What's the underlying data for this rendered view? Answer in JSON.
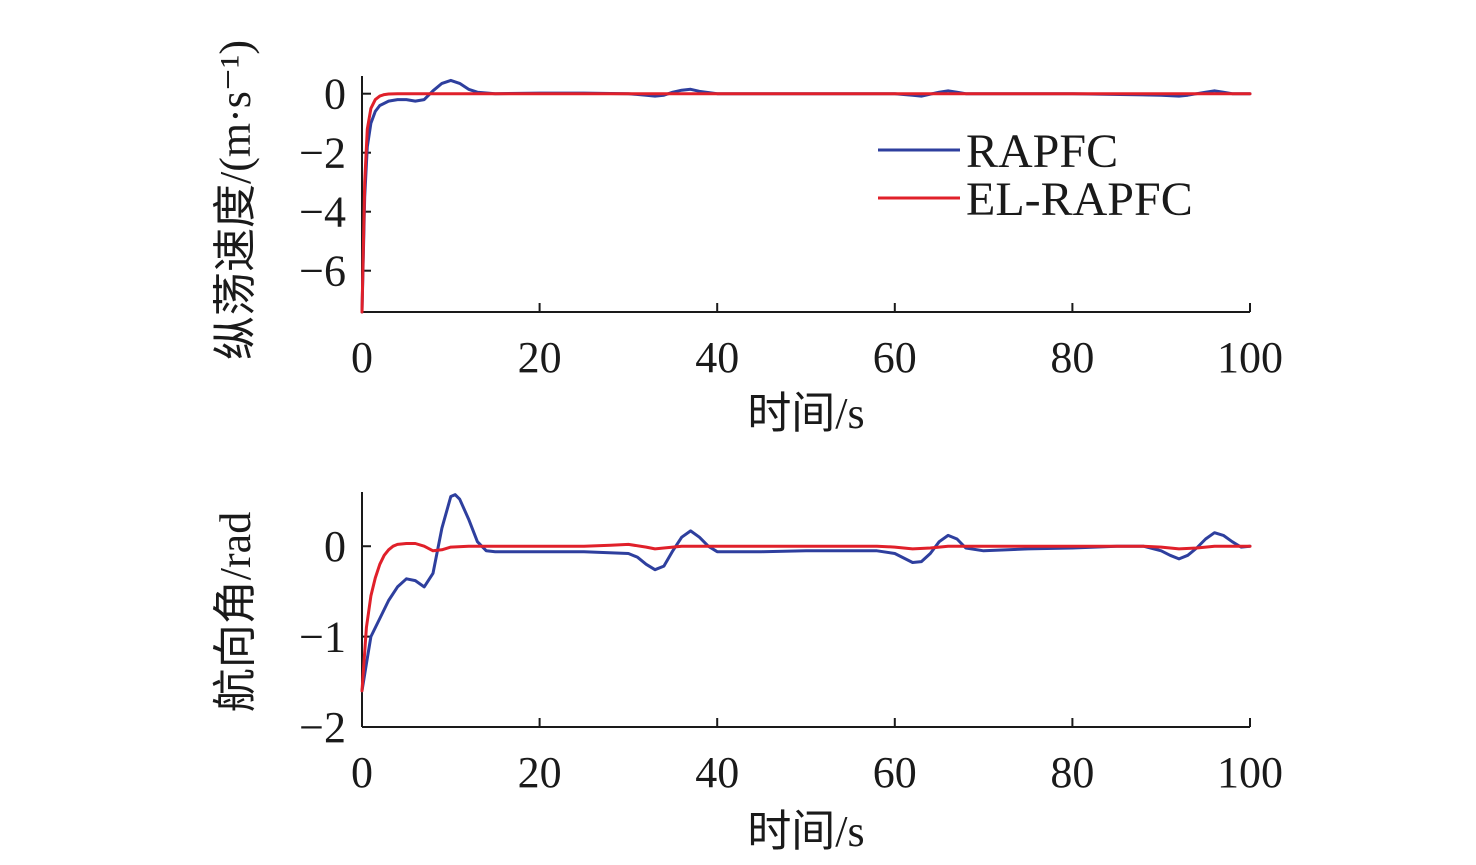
{
  "colors": {
    "rapfc": "#2e3f9e",
    "el_rapfc": "#e0202a",
    "axis": "#1a1a1a"
  },
  "chart_data": [
    {
      "type": "line",
      "xlabel": "时间/s",
      "ylabel": "纵荡速度/(m·s⁻¹)",
      "xlim": [
        0,
        100
      ],
      "ylim": [
        -7.4,
        0.6
      ],
      "xticks": [
        0,
        20,
        40,
        60,
        80,
        100
      ],
      "xtick_labels": [
        "0",
        "20",
        "40",
        "60",
        "80",
        "100"
      ],
      "yticks": [
        0,
        -2,
        -4,
        -6
      ],
      "ytick_labels": [
        "0",
        "−2",
        "−4",
        "−6"
      ],
      "grid": false,
      "legend": {
        "position": "upper-right"
      },
      "series": [
        {
          "name": "RAPFC",
          "color": "#2e3f9e",
          "x": [
            0,
            0.3,
            0.6,
            1,
            1.5,
            2,
            3,
            4,
            5,
            6,
            7,
            8,
            9,
            10,
            11,
            12,
            13,
            15,
            20,
            25,
            30,
            32,
            33,
            34,
            35,
            36,
            37,
            38,
            40,
            50,
            60,
            62,
            63,
            65,
            66,
            67,
            68,
            70,
            80,
            90,
            92,
            93,
            95,
            96,
            97,
            98,
            100
          ],
          "y": [
            -7.4,
            -3.5,
            -1.8,
            -1.0,
            -0.6,
            -0.4,
            -0.25,
            -0.2,
            -0.2,
            -0.25,
            -0.2,
            0.1,
            0.35,
            0.45,
            0.35,
            0.15,
            0.05,
            0.0,
            0.02,
            0.02,
            0.0,
            -0.05,
            -0.08,
            -0.05,
            0.05,
            0.12,
            0.15,
            0.08,
            0.0,
            0.0,
            0.0,
            -0.05,
            -0.08,
            0.05,
            0.1,
            0.05,
            0.0,
            0.0,
            0.0,
            -0.05,
            -0.08,
            -0.05,
            0.05,
            0.1,
            0.05,
            0.0,
            0.0
          ]
        },
        {
          "name": "EL-RAPFC",
          "color": "#e0202a",
          "x": [
            0,
            0.3,
            0.6,
            1,
            1.5,
            2,
            2.5,
            3,
            4,
            5,
            10,
            20,
            40,
            60,
            80,
            100
          ],
          "y": [
            -7.4,
            -3.0,
            -1.2,
            -0.5,
            -0.2,
            -0.08,
            -0.03,
            -0.01,
            0.0,
            0.0,
            0.0,
            0.0,
            0.0,
            0.0,
            0.0,
            0.0
          ]
        }
      ]
    },
    {
      "type": "line",
      "xlabel": "时间/s",
      "ylabel": "航向角/rad",
      "xlim": [
        0,
        100
      ],
      "ylim": [
        -2,
        0.6
      ],
      "xticks": [
        0,
        20,
        40,
        60,
        80,
        100
      ],
      "xtick_labels": [
        "0",
        "20",
        "40",
        "60",
        "80",
        "100"
      ],
      "yticks": [
        0,
        -1,
        -2
      ],
      "ytick_labels": [
        "0",
        "−1",
        "−2"
      ],
      "grid": false,
      "series": [
        {
          "name": "RAPFC",
          "color": "#2e3f9e",
          "x": [
            0,
            0.5,
            1,
            2,
            3,
            4,
            5,
            6,
            7,
            8,
            9,
            10,
            10.5,
            11,
            12,
            13,
            14,
            15,
            20,
            25,
            30,
            31,
            32,
            33,
            34,
            35,
            36,
            37,
            38,
            39,
            40,
            45,
            50,
            55,
            58,
            60,
            61,
            62,
            63,
            64,
            65,
            66,
            67,
            68,
            70,
            75,
            80,
            85,
            88,
            90,
            91,
            92,
            93,
            94,
            95,
            96,
            97,
            98,
            99,
            100
          ],
          "y": [
            -1.6,
            -1.3,
            -1.0,
            -0.8,
            -0.6,
            -0.45,
            -0.36,
            -0.38,
            -0.45,
            -0.3,
            0.2,
            0.55,
            0.57,
            0.52,
            0.3,
            0.05,
            -0.05,
            -0.06,
            -0.06,
            -0.06,
            -0.08,
            -0.12,
            -0.2,
            -0.26,
            -0.22,
            -0.05,
            0.1,
            0.17,
            0.1,
            0.0,
            -0.06,
            -0.06,
            -0.05,
            -0.05,
            -0.05,
            -0.08,
            -0.13,
            -0.18,
            -0.17,
            -0.08,
            0.05,
            0.12,
            0.08,
            -0.02,
            -0.05,
            -0.03,
            -0.02,
            0.0,
            0.0,
            -0.05,
            -0.1,
            -0.14,
            -0.1,
            -0.02,
            0.08,
            0.15,
            0.12,
            0.05,
            -0.01,
            0.0
          ]
        },
        {
          "name": "EL-RAPFC",
          "color": "#e0202a",
          "x": [
            0,
            0.5,
            1,
            1.5,
            2,
            2.5,
            3,
            3.5,
            4,
            5,
            6,
            7,
            8,
            9,
            10,
            12,
            15,
            20,
            25,
            28,
            30,
            32,
            33,
            34,
            36,
            40,
            50,
            58,
            60,
            62,
            64,
            66,
            70,
            80,
            88,
            90,
            92,
            94,
            96,
            98,
            100
          ],
          "y": [
            -1.6,
            -0.9,
            -0.55,
            -0.35,
            -0.2,
            -0.1,
            -0.04,
            0.0,
            0.02,
            0.03,
            0.03,
            0.0,
            -0.05,
            -0.04,
            -0.01,
            0.0,
            0.0,
            0.0,
            0.0,
            0.01,
            0.02,
            -0.01,
            -0.03,
            -0.02,
            0.0,
            0.0,
            0.0,
            0.0,
            -0.01,
            -0.03,
            -0.02,
            0.0,
            0.0,
            0.0,
            0.0,
            -0.01,
            -0.03,
            -0.02,
            0.0,
            0.0,
            0.0
          ]
        }
      ]
    }
  ]
}
